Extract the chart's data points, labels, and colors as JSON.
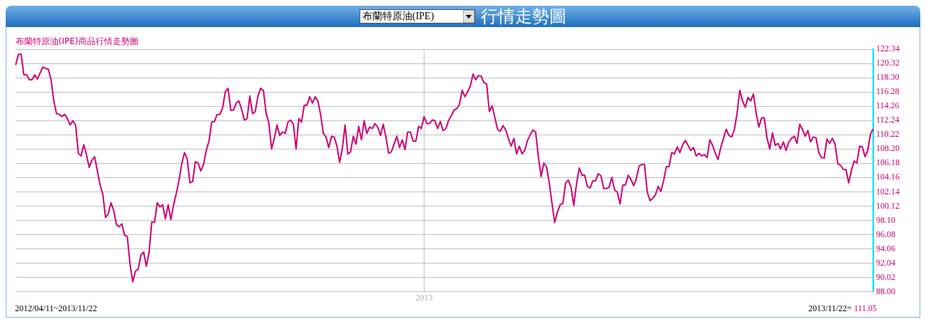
{
  "chart_data": {
    "type": "line",
    "title": "行情走勢圖",
    "subtitle": "布蘭特原油(IPE)商品行情走勢圖",
    "annotations": [
      "布蘭特原油(IPE)",
      "2012/04/11~2013/11/22",
      "2013/11/22=",
      "111.05"
    ],
    "categories": [
      null,
      null,
      null,
      null,
      null,
      null,
      null,
      null,
      null,
      null,
      null,
      null,
      null,
      null,
      null,
      null,
      null,
      null,
      null,
      null,
      null,
      null,
      null,
      null,
      null,
      null,
      null,
      null,
      null,
      null,
      null,
      null,
      null,
      null,
      null,
      null,
      null,
      null,
      null,
      null,
      null,
      null,
      null,
      null,
      null,
      null,
      null,
      null,
      null,
      null,
      null,
      null,
      null,
      null,
      null,
      null,
      null,
      null,
      null,
      null,
      null,
      null,
      null,
      null,
      null,
      null,
      null,
      null,
      null,
      null,
      null,
      null,
      null,
      null,
      null,
      null,
      null,
      null,
      null,
      null,
      null,
      null,
      null,
      null,
      null,
      null,
      null,
      null,
      null,
      null,
      null,
      null,
      null,
      null,
      null,
      null,
      null,
      null,
      null,
      null,
      null,
      null,
      null,
      null,
      null,
      null,
      null,
      null,
      null,
      null,
      null,
      null,
      null,
      null,
      null,
      null,
      null,
      null,
      null,
      null,
      null,
      null,
      null,
      null,
      null,
      null,
      null,
      null,
      null,
      null,
      null,
      null,
      null,
      null,
      null,
      null,
      null,
      null,
      null,
      null,
      null,
      null,
      null,
      null,
      null,
      null,
      null,
      null,
      null,
      null,
      "2013",
      null,
      null,
      null,
      null,
      null,
      null,
      null,
      null,
      null,
      null,
      null,
      null,
      null,
      null,
      null,
      null,
      null,
      null,
      null,
      null,
      null,
      null,
      null,
      null,
      null,
      null,
      null,
      null,
      null,
      null,
      null,
      null,
      null,
      null,
      null,
      null,
      null,
      null,
      null,
      null,
      null,
      null,
      null,
      null,
      null,
      null,
      null,
      null,
      null,
      null,
      null,
      null,
      null,
      null,
      null,
      null,
      null,
      null,
      null,
      null,
      null,
      null,
      null,
      null,
      null,
      null,
      null,
      null,
      null,
      null,
      null,
      null,
      null,
      null,
      null,
      null,
      null,
      null,
      null,
      null,
      null,
      null,
      null,
      null,
      null,
      null,
      null,
      null,
      null,
      null,
      null,
      null,
      null,
      null,
      null,
      null,
      null,
      null,
      null,
      null,
      null,
      null,
      null,
      null,
      null,
      null,
      null,
      null,
      null,
      null,
      null,
      null,
      null,
      null,
      null,
      null,
      null,
      null,
      null,
      null,
      null,
      null,
      null,
      null,
      null,
      null,
      null,
      null,
      null,
      null,
      null,
      null,
      null,
      null,
      null,
      null,
      null,
      null,
      null,
      null,
      null,
      null,
      null,
      null,
      null,
      null,
      null,
      null,
      null,
      null,
      null,
      null,
      null,
      null,
      null,
      null,
      null,
      null,
      null,
      null,
      null,
      null,
      null,
      null,
      null
    ],
    "series": [
      {
        "color": "#cc0077",
        "values": [
          120.1,
          121.6,
          121.6,
          118.7,
          118.7,
          118.0,
          118.0,
          118.7,
          118.1,
          119.0,
          119.8,
          119.6,
          119.5,
          118.0,
          115.0,
          113.2,
          113.1,
          112.8,
          113.1,
          112.5,
          111.6,
          112.2,
          111.6,
          107.6,
          107.2,
          108.8,
          107.4,
          105.6,
          106.6,
          107.1,
          105.1,
          103.1,
          101.8,
          98.5,
          99.0,
          100.6,
          99.5,
          97.5,
          97.2,
          97.6,
          96.0,
          95.8,
          91.9,
          89.4,
          90.9,
          91.2,
          93.2,
          93.6,
          91.6,
          93.6,
          97.9,
          97.8,
          100.6,
          100.0,
          100.3,
          98.3,
          100.3,
          98.2,
          100.3,
          101.9,
          103.8,
          106.1,
          107.7,
          106.8,
          103.4,
          103.6,
          106.4,
          106.2,
          105.1,
          106.0,
          108.0,
          109.3,
          112.0,
          112.1,
          113.1,
          113.1,
          114.0,
          116.3,
          116.8,
          113.7,
          113.7,
          114.7,
          115.0,
          113.8,
          112.3,
          112.5,
          115.7,
          113.2,
          113.5,
          115.7,
          116.8,
          116.5,
          113.2,
          111.9,
          108.2,
          109.7,
          111.6,
          110.1,
          110.6,
          110.4,
          112.0,
          112.3,
          111.7,
          108.2,
          112.5,
          112.0,
          114.4,
          114.4,
          115.6,
          114.7,
          115.6,
          115.0,
          113.1,
          110.4,
          109.9,
          108.4,
          110.0,
          109.9,
          108.6,
          106.3,
          108.3,
          111.6,
          107.5,
          107.8,
          110.0,
          108.9,
          111.4,
          109.5,
          112.2,
          110.4,
          111.3,
          111.1,
          111.8,
          111.3,
          110.1,
          111.7,
          109.9,
          107.6,
          107.8,
          108.9,
          110.0,
          108.4,
          109.5,
          108.1,
          110.6,
          110.6,
          109.3,
          109.3,
          111.4,
          111.1,
          112.8,
          111.8,
          111.8,
          112.3,
          112.2,
          111.1,
          112.1,
          110.8,
          111.1,
          112.2,
          112.9,
          113.7,
          113.9,
          114.5,
          116.5,
          115.6,
          116.3,
          117.1,
          118.8,
          118.0,
          118.6,
          118.5,
          117.6,
          117.4,
          113.5,
          114.3,
          112.7,
          111.0,
          110.7,
          111.5,
          110.9,
          109.7,
          108.6,
          109.7,
          107.5,
          108.6,
          107.5,
          108.0,
          109.4,
          110.2,
          110.9,
          110.6,
          107.1,
          104.3,
          106.2,
          105.7,
          103.4,
          100.5,
          97.8,
          99.3,
          100.3,
          100.5,
          103.4,
          103.8,
          102.8,
          100.2,
          103.2,
          105.5,
          104.5,
          104.5,
          102.9,
          102.7,
          103.7,
          103.7,
          104.7,
          104.4,
          102.6,
          102.6,
          102.8,
          104.2,
          102.4,
          102.1,
          100.4,
          103.1,
          103.1,
          104.5,
          103.9,
          103.0,
          104.0,
          105.8,
          106.0,
          106.0,
          102.1,
          100.9,
          101.2,
          101.7,
          102.9,
          102.2,
          103.7,
          105.7,
          105.7,
          107.7,
          107.5,
          108.5,
          107.7,
          108.8,
          109.4,
          108.7,
          108.0,
          108.4,
          107.2,
          107.6,
          107.2,
          107.4,
          107.0,
          109.5,
          108.7,
          107.6,
          106.7,
          108.4,
          109.7,
          111.0,
          110.1,
          109.9,
          110.9,
          113.3,
          116.5,
          115.0,
          114.1,
          115.5,
          115.0,
          116.0,
          113.3,
          111.3,
          112.6,
          112.6,
          109.7,
          108.2,
          110.5,
          108.7,
          109.0,
          108.2,
          109.2,
          108.0,
          109.2,
          109.7,
          110.0,
          109.0,
          111.7,
          111.0,
          110.0,
          110.8,
          109.2,
          109.9,
          109.8,
          107.7,
          107.0,
          106.9,
          109.6,
          109.0,
          109.7,
          108.9,
          106.1,
          105.9,
          105.3,
          105.3,
          103.4,
          105.2,
          106.5,
          106.2,
          108.6,
          108.5,
          107.1,
          108.0,
          110.3,
          111.05
        ]
      }
    ],
    "ylim": [
      88,
      122.34
    ],
    "yticks": [
      {
        "value": 88,
        "label": "88.00"
      },
      {
        "value": 90.02,
        "label": "90.02"
      },
      {
        "value": 92.04,
        "label": "92.04"
      },
      {
        "value": 94.06,
        "label": "94.06"
      },
      {
        "value": 96.08,
        "label": "96.08"
      },
      {
        "value": 98.1,
        "label": "98.10"
      },
      {
        "value": 100.12,
        "label": "100.12"
      },
      {
        "value": 102.14,
        "label": "102.14"
      },
      {
        "value": 104.16,
        "label": "104.16"
      },
      {
        "value": 106.18,
        "label": "106.18"
      },
      {
        "value": 108.2,
        "label": "108.20"
      },
      {
        "value": 110.22,
        "label": "110.22"
      },
      {
        "value": 112.24,
        "label": "112.24"
      },
      {
        "value": 114.26,
        "label": "114.26"
      },
      {
        "value": 116.28,
        "label": "116.28"
      },
      {
        "value": 118.3,
        "label": "118.30"
      },
      {
        "value": 120.32,
        "label": "120.32"
      },
      {
        "value": 122.34,
        "label": "122.34"
      }
    ],
    "grid": true,
    "legend": false,
    "marker": "none",
    "line_style": "solid"
  }
}
